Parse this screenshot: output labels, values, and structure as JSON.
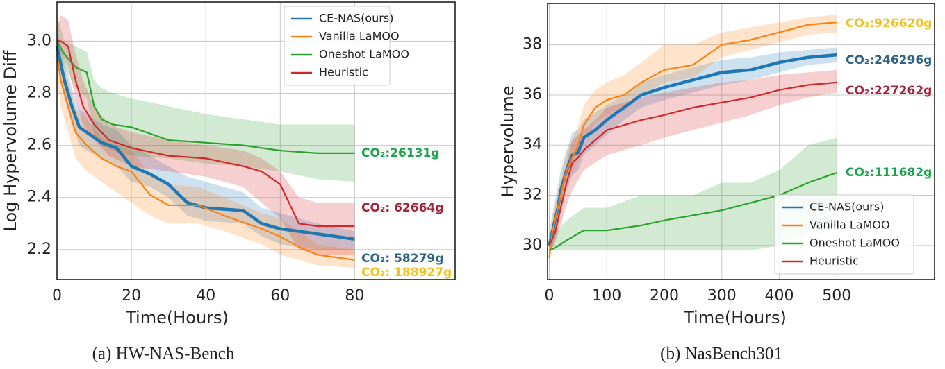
{
  "chart_data": [
    {
      "type": "line",
      "caption": "(a) HW-NAS-Bench",
      "xlabel": "Time(Hours)",
      "ylabel": "Log Hypervolume Diff",
      "xlim": [
        0,
        107
      ],
      "ylim": [
        2.085,
        3.15
      ],
      "xticks": [
        0,
        20,
        40,
        60,
        80
      ],
      "yticks": [
        2.2,
        2.4,
        2.6,
        2.8,
        {
          "value": 3,
          "label": "3.0"
        }
      ],
      "grid": true,
      "legend": "upper right",
      "series": [
        {
          "name": "CE-NAS(ours)",
          "color": "#1f77b4",
          "co2_label": "CO₂: 58279g",
          "label_color": "#2e6283",
          "x": [
            0,
            2,
            4,
            6,
            8,
            12,
            16,
            20,
            25,
            30,
            35,
            40,
            50,
            55,
            60,
            70,
            80
          ],
          "values": [
            2.98,
            2.85,
            2.75,
            2.67,
            2.65,
            2.61,
            2.59,
            2.52,
            2.49,
            2.45,
            2.38,
            2.36,
            2.35,
            2.3,
            2.28,
            2.26,
            2.24
          ],
          "lower": [
            2.93,
            2.78,
            2.68,
            2.6,
            2.58,
            2.55,
            2.52,
            2.46,
            2.44,
            2.4,
            2.33,
            2.31,
            2.3,
            2.25,
            2.22,
            2.2,
            2.2
          ],
          "upper": [
            3.05,
            2.92,
            2.82,
            2.74,
            2.72,
            2.68,
            2.66,
            2.6,
            2.56,
            2.52,
            2.48,
            2.46,
            2.42,
            2.36,
            2.34,
            2.3,
            2.27
          ]
        },
        {
          "name": "Vanilla LaMOO",
          "color": "#ff7f0e",
          "co2_label": "CO₂: 188927g",
          "label_color": "#f2c21b",
          "x": [
            0,
            1,
            3,
            5,
            8,
            12,
            16,
            20,
            25,
            30,
            38,
            45,
            55,
            60,
            65,
            70,
            80
          ],
          "values": [
            2.95,
            2.85,
            2.75,
            2.65,
            2.6,
            2.55,
            2.52,
            2.5,
            2.41,
            2.37,
            2.37,
            2.33,
            2.28,
            2.25,
            2.21,
            2.18,
            2.16
          ],
          "lower": [
            2.85,
            2.75,
            2.65,
            2.55,
            2.5,
            2.46,
            2.42,
            2.38,
            2.33,
            2.3,
            2.3,
            2.27,
            2.22,
            2.18,
            2.16,
            2.14,
            2.13
          ],
          "upper": [
            3.05,
            2.95,
            2.85,
            2.74,
            2.7,
            2.63,
            2.6,
            2.58,
            2.49,
            2.45,
            2.44,
            2.4,
            2.34,
            2.32,
            2.27,
            2.22,
            2.2
          ]
        },
        {
          "name": "Oneshot LaMOO",
          "color": "#2ca02c",
          "co2_label": "CO₂:26131g",
          "label_color": "#16a34a",
          "x": [
            0,
            2,
            5,
            8,
            10,
            12,
            15,
            20,
            30,
            40,
            50,
            60,
            70,
            80
          ],
          "values": [
            3.0,
            2.95,
            2.9,
            2.88,
            2.75,
            2.7,
            2.68,
            2.67,
            2.62,
            2.61,
            2.6,
            2.58,
            2.57,
            2.57
          ],
          "lower": [
            2.95,
            2.9,
            2.82,
            2.78,
            2.64,
            2.6,
            2.58,
            2.56,
            2.55,
            2.53,
            2.52,
            2.5,
            2.47,
            2.46
          ],
          "upper": [
            3.1,
            3.0,
            2.98,
            2.96,
            2.85,
            2.82,
            2.8,
            2.78,
            2.75,
            2.72,
            2.7,
            2.68,
            2.68,
            2.68
          ]
        },
        {
          "name": "Heuristic",
          "color": "#d62728",
          "co2_label": "CO₂: 62664g",
          "label_color": "#a3213a",
          "x": [
            0,
            1,
            3,
            5,
            7,
            10,
            14,
            20,
            30,
            40,
            50,
            55,
            60,
            65,
            70,
            80
          ],
          "values": [
            3.0,
            3.0,
            2.98,
            2.85,
            2.75,
            2.68,
            2.62,
            2.59,
            2.56,
            2.55,
            2.52,
            2.5,
            2.45,
            2.3,
            2.29,
            2.29
          ],
          "lower": [
            2.95,
            2.95,
            2.9,
            2.78,
            2.68,
            2.62,
            2.56,
            2.52,
            2.5,
            2.48,
            2.44,
            2.38,
            2.32,
            2.2,
            2.18,
            2.18
          ],
          "upper": [
            3.05,
            3.1,
            3.08,
            2.95,
            2.85,
            2.75,
            2.68,
            2.65,
            2.62,
            2.6,
            2.58,
            2.55,
            2.5,
            2.4,
            2.38,
            2.38
          ]
        }
      ]
    },
    {
      "type": "line",
      "caption": "(b) NasBench301",
      "xlabel": "Time(Hours)",
      "ylabel": "Hypervolume",
      "xlim": [
        -3,
        670
      ],
      "ylim": [
        28.64,
        39.65
      ],
      "xticks": [
        0,
        100,
        200,
        300,
        400,
        500
      ],
      "yticks": [
        30,
        32,
        34,
        36,
        38
      ],
      "grid": true,
      "legend": "lower right",
      "series": [
        {
          "name": "CE-NAS(ours)",
          "color": "#1f77b4",
          "co2_label": "CO₂:246296g",
          "label_color": "#2e6283",
          "x": [
            0,
            5,
            10,
            15,
            20,
            30,
            40,
            50,
            60,
            80,
            100,
            130,
            160,
            200,
            250,
            300,
            350,
            400,
            450,
            500
          ],
          "values": [
            30.0,
            30.5,
            31.0,
            31.5,
            32.2,
            33.0,
            33.6,
            33.7,
            34.3,
            34.6,
            35.0,
            35.5,
            36.0,
            36.3,
            36.6,
            36.9,
            37.0,
            37.3,
            37.5,
            37.6
          ],
          "lower": [
            29.6,
            29.9,
            30.2,
            30.7,
            31.4,
            32.2,
            32.8,
            33.0,
            33.6,
            34.0,
            34.4,
            35.0,
            35.5,
            35.8,
            36.1,
            36.4,
            36.6,
            36.9,
            37.2,
            37.3
          ],
          "upper": [
            30.6,
            31.2,
            31.8,
            32.4,
            33.0,
            33.8,
            34.5,
            34.6,
            35.0,
            35.3,
            35.6,
            36.0,
            36.5,
            36.8,
            37.1,
            37.4,
            37.5,
            37.7,
            37.8,
            37.9
          ]
        },
        {
          "name": "Vanilla LaMOO",
          "color": "#ff7f0e",
          "co2_label": "CO₂:926620g",
          "label_color": "#f2c21b",
          "x": [
            0,
            5,
            10,
            20,
            30,
            40,
            50,
            60,
            80,
            100,
            130,
            160,
            200,
            250,
            300,
            350,
            400,
            450,
            500
          ],
          "values": [
            29.5,
            30.5,
            31.0,
            32.0,
            33.0,
            33.5,
            34.0,
            34.8,
            35.5,
            35.8,
            36.0,
            36.5,
            37.0,
            37.2,
            38.0,
            38.2,
            38.5,
            38.8,
            38.9
          ],
          "lower": [
            29.2,
            30.0,
            30.4,
            31.3,
            32.3,
            32.9,
            33.4,
            34.2,
            34.9,
            35.2,
            35.5,
            36.0,
            36.5,
            36.7,
            37.5,
            37.8,
            38.1,
            38.4,
            38.5
          ],
          "upper": [
            30.0,
            31.0,
            31.6,
            32.7,
            33.7,
            34.2,
            34.8,
            35.6,
            36.2,
            36.5,
            36.8,
            37.3,
            38.0,
            38.0,
            38.5,
            38.7,
            38.9,
            39.1,
            39.2
          ]
        },
        {
          "name": "Oneshot LaMOO",
          "color": "#2ca02c",
          "co2_label": "CO₂:111682g",
          "label_color": "#16a34a",
          "x": [
            0,
            10,
            30,
            60,
            100,
            160,
            200,
            250,
            300,
            350,
            400,
            450,
            500
          ],
          "values": [
            29.8,
            29.9,
            30.2,
            30.6,
            30.6,
            30.8,
            31.0,
            31.2,
            31.4,
            31.7,
            32.0,
            32.5,
            32.9
          ],
          "lower": [
            29.8,
            29.8,
            29.8,
            29.8,
            29.8,
            29.8,
            29.8,
            29.8,
            29.8,
            29.8,
            30.0,
            30.5,
            30.8
          ],
          "upper": [
            30.0,
            30.5,
            31.0,
            31.5,
            31.5,
            32.0,
            32.0,
            32.0,
            32.5,
            32.5,
            33.0,
            34.0,
            34.3
          ]
        },
        {
          "name": "Heuristic",
          "color": "#d62728",
          "co2_label": "CO₂:227262g",
          "label_color": "#a3213a",
          "x": [
            0,
            10,
            20,
            30,
            40,
            50,
            60,
            80,
            100,
            130,
            160,
            200,
            250,
            300,
            350,
            400,
            450,
            500
          ],
          "values": [
            30.0,
            30.5,
            31.5,
            32.5,
            33.3,
            33.5,
            33.8,
            34.2,
            34.6,
            34.8,
            35.0,
            35.2,
            35.5,
            35.7,
            35.9,
            36.2,
            36.4,
            36.5
          ],
          "lower": [
            29.7,
            30.1,
            30.8,
            31.6,
            32.2,
            32.6,
            33.0,
            33.3,
            33.6,
            33.8,
            34.0,
            34.3,
            34.6,
            34.9,
            35.2,
            35.6,
            35.9,
            36.1
          ],
          "upper": [
            30.4,
            31.0,
            32.2,
            33.3,
            34.2,
            34.4,
            34.6,
            35.0,
            35.5,
            35.7,
            35.9,
            36.1,
            36.3,
            36.5,
            36.6,
            36.8,
            36.9,
            37.0
          ]
        }
      ]
    }
  ]
}
